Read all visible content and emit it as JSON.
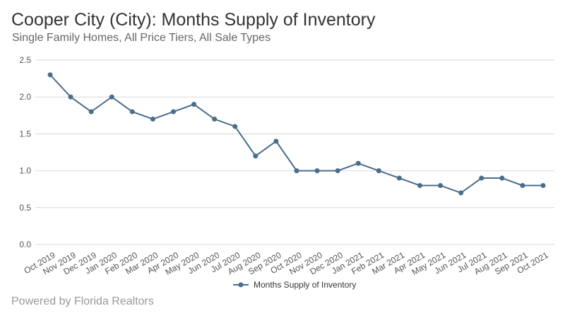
{
  "header": {
    "title": "Cooper City (City): Months Supply of Inventory",
    "subtitle": "Single Family Homes, All Price Tiers, All Sale Types"
  },
  "footer": {
    "credit": "Powered by Florida Realtors"
  },
  "chart_data": {
    "type": "line",
    "categories": [
      "Oct 2019",
      "Nov 2019",
      "Dec 2019",
      "Jan 2020",
      "Feb 2020",
      "Mar 2020",
      "Apr 2020",
      "May 2020",
      "Jun 2020",
      "Jul 2020",
      "Aug 2020",
      "Sep 2020",
      "Oct 2020",
      "Nov 2020",
      "Dec 2020",
      "Jan 2021",
      "Feb 2021",
      "Mar 2021",
      "Apr 2021",
      "May 2021",
      "Jun 2021",
      "Jul 2021",
      "Aug 2021",
      "Sep 2021",
      "Oct 2021"
    ],
    "series": [
      {
        "name": "Months Supply of Inventory",
        "color": "#4a6d8c",
        "values": [
          2.3,
          2.0,
          1.8,
          2.0,
          1.8,
          1.7,
          1.8,
          1.9,
          1.7,
          1.6,
          1.2,
          1.4,
          1.0,
          1.0,
          1.0,
          1.1,
          1.0,
          0.9,
          0.8,
          0.8,
          0.7,
          0.9,
          0.9,
          0.8,
          0.8
        ]
      }
    ],
    "yticks": [
      "0.0",
      "0.5",
      "1.0",
      "1.5",
      "2.0",
      "2.5"
    ],
    "ylim": [
      0,
      2.5
    ],
    "grid": true,
    "legend": "bottom"
  }
}
